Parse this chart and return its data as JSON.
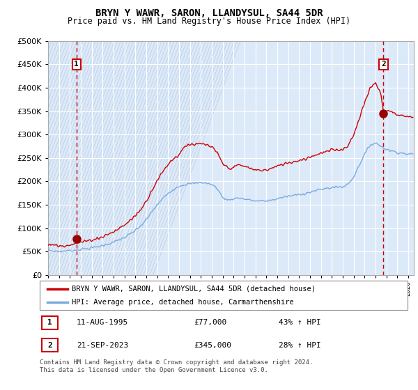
{
  "title": "BRYN Y WAWR, SARON, LLANDYSUL, SA44 5DR",
  "subtitle": "Price paid vs. HM Land Registry's House Price Index (HPI)",
  "sale1_date": "11-AUG-1995",
  "sale1_price": 77000,
  "sale1_hpi": "43% ↑ HPI",
  "sale1_label": "1",
  "sale2_date": "21-SEP-2023",
  "sale2_price": 345000,
  "sale2_hpi": "28% ↑ HPI",
  "sale2_label": "2",
  "legend_line1": "BRYN Y WAWR, SARON, LLANDYSUL, SA44 5DR (detached house)",
  "legend_line2": "HPI: Average price, detached house, Carmarthenshire",
  "footer": "Contains HM Land Registry data © Crown copyright and database right 2024.\nThis data is licensed under the Open Government Licence v3.0.",
  "price_line_color": "#cc0000",
  "hpi_line_color": "#7aaadd",
  "sale_marker_color": "#990000",
  "vline_color": "#cc0000",
  "plot_bg_color": "#dce9f8",
  "ylim": [
    0,
    500000
  ],
  "yticks": [
    0,
    50000,
    100000,
    150000,
    200000,
    250000,
    300000,
    350000,
    400000,
    450000,
    500000
  ],
  "sale1_x": 1995.6,
  "sale2_x": 2023.72,
  "xmin": 1993.0,
  "xmax": 2026.5
}
